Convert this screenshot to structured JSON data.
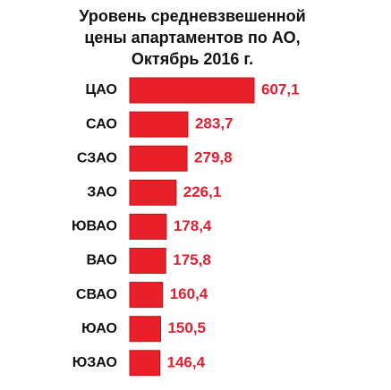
{
  "chart_data": {
    "type": "bar",
    "orientation": "horizontal",
    "title": [
      "Уровень средневзвешенной",
      "цены апартаментов  по АО,",
      "Октябрь 2016 г."
    ],
    "categories": [
      "ЦАО",
      "САО",
      "СЗАО",
      "ЗАО",
      "ЮВАО",
      "ВАО",
      "СВАО",
      "ЮАО",
      "ЮЗАО"
    ],
    "values": [
      607.1,
      283.7,
      279.8,
      226.1,
      178.4,
      175.8,
      160.4,
      150.5,
      146.4
    ],
    "value_labels": [
      "607,1",
      "283,7",
      "279,8",
      "226,1",
      "178,4",
      "175,8",
      "160,4",
      "150,5",
      "146,4"
    ],
    "color": "#e8202a",
    "label_color": "#e02030"
  }
}
